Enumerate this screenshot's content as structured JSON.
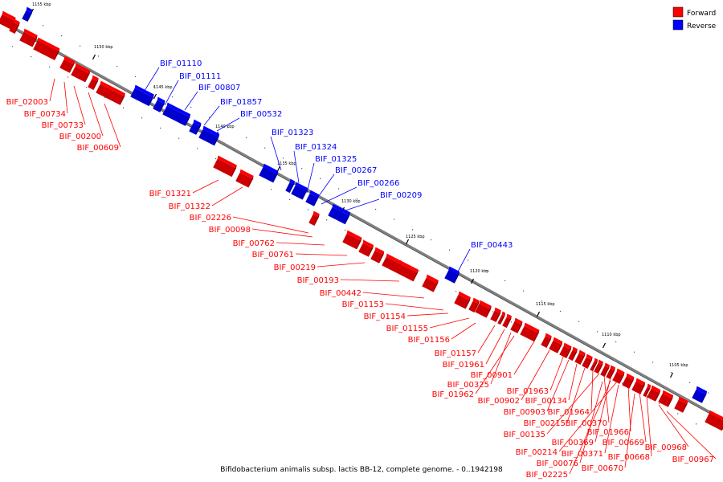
{
  "caption": "Bifidobacterium animalis subsp. lactis BB-12, complete genome. - 0..1942198",
  "legend": [
    {
      "label": "Forward",
      "color": "#ff0000"
    },
    {
      "label": "Reverse",
      "color": "#0000ff"
    }
  ],
  "colors": {
    "forward": "#ff0000",
    "reverse": "#0000ff",
    "backbone": "#808080"
  },
  "ticks": [
    "1155 kbp",
    "1150 kbp",
    "1145 kbp",
    "1140 kbp",
    "1135 kbp",
    "1130 kbp",
    "1125 kbp",
    "1120 kbp",
    "1115 kbp",
    "1110 kbp",
    "1105 kbp"
  ],
  "forward_labels": [
    "BIF_02003",
    "BIF_00734",
    "BIF_00733",
    "BIF_00200",
    "BIF_00609",
    "BIF_01321",
    "BIF_01322",
    "BIF_02226",
    "BIF_00098",
    "BIF_00762",
    "BIF_00761",
    "BIF_00219",
    "BIF_00193",
    "BIF_00442",
    "BIF_01153",
    "BIF_01154",
    "BIF_01155",
    "BIF_01156",
    "BIF_01157",
    "BIF_01961",
    "BIF_00325",
    "BIF_01962",
    "BIF_00901",
    "BIF_00902",
    "BIF_01963",
    "BIF_00903",
    "BIF_00134",
    "BIF_00215",
    "BIF_01964",
    "BIF_00135",
    "BIF_00370",
    "BIF_00369",
    "BIF_00214",
    "BIF_01966",
    "BIF_00371",
    "BIF_00669",
    "BIF_00076",
    "BIF_00668",
    "BIF_00670",
    "BIF_02225",
    "BIF_00968",
    "BIF_00967"
  ],
  "reverse_labels": [
    "BIF_01110",
    "BIF_01111",
    "BIF_00807",
    "BIF_01857",
    "BIF_00532",
    "BIF_01323",
    "BIF_01324",
    "BIF_01325",
    "BIF_00267",
    "BIF_00266",
    "BIF_00209",
    "BIF_00443"
  ]
}
